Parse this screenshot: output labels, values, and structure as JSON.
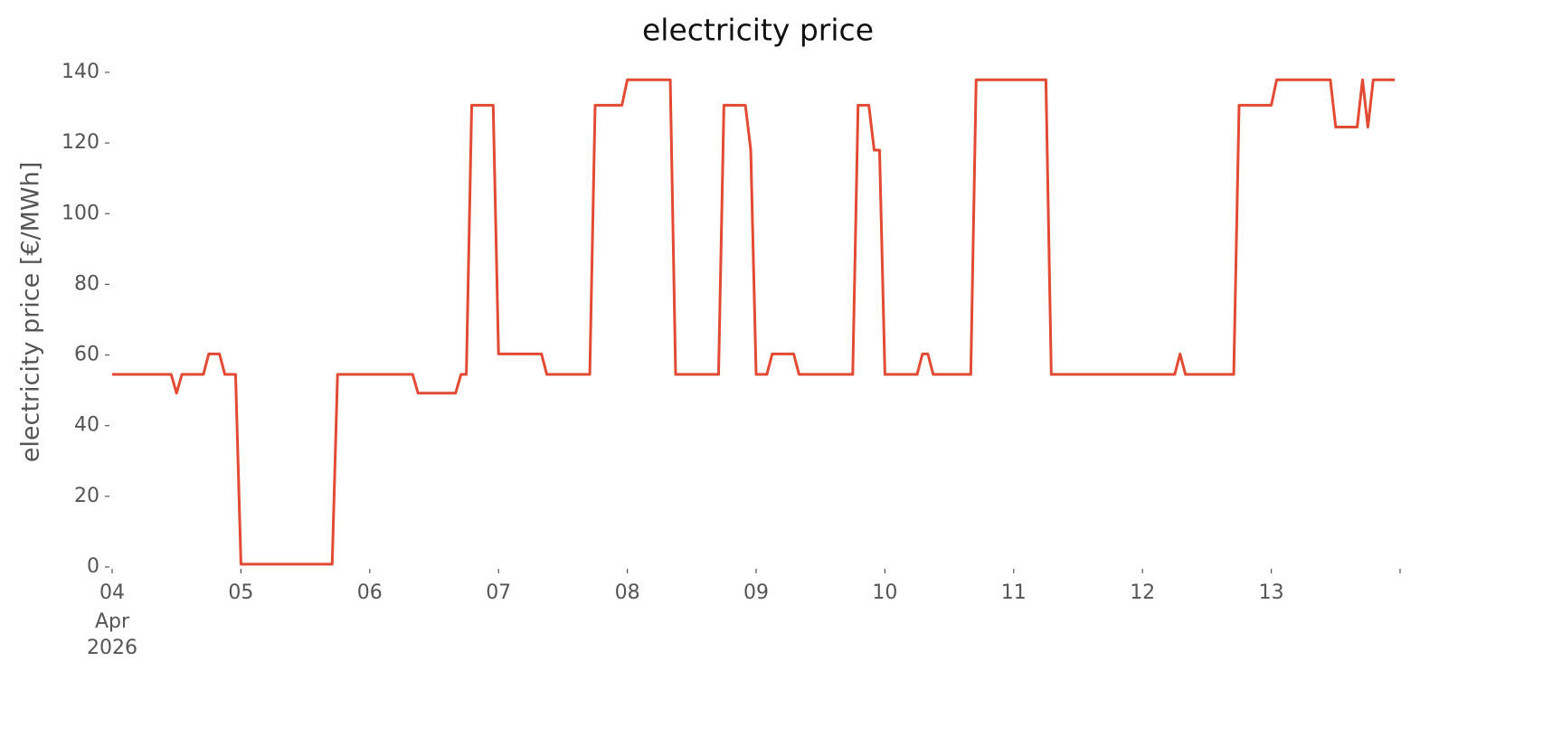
{
  "chart_data": {
    "type": "line",
    "title": "electricity price",
    "ylabel": "electricity price [€/MWh]",
    "x": [
      "2026-04-04T00:00",
      "2026-04-04T11:00",
      "2026-04-04T12:00",
      "2026-04-04T13:00",
      "2026-04-04T17:00",
      "2026-04-04T18:00",
      "2026-04-04T20:00",
      "2026-04-04T21:00",
      "2026-04-04T23:00",
      "2026-04-05T00:00",
      "2026-04-05T17:00",
      "2026-04-05T18:00",
      "2026-04-06T08:00",
      "2026-04-06T09:00",
      "2026-04-06T16:00",
      "2026-04-06T17:00",
      "2026-04-06T18:00",
      "2026-04-06T19:00",
      "2026-04-06T23:00",
      "2026-04-07T00:00",
      "2026-04-07T08:00",
      "2026-04-07T09:00",
      "2026-04-07T17:00",
      "2026-04-07T18:00",
      "2026-04-07T23:00",
      "2026-04-08T00:00",
      "2026-04-08T08:00",
      "2026-04-08T09:00",
      "2026-04-08T17:00",
      "2026-04-08T18:00",
      "2026-04-08T22:00",
      "2026-04-08T23:00",
      "2026-04-09T00:00",
      "2026-04-09T02:00",
      "2026-04-09T03:00",
      "2026-04-09T07:00",
      "2026-04-09T08:00",
      "2026-04-09T18:00",
      "2026-04-09T19:00",
      "2026-04-09T21:00",
      "2026-04-09T22:00",
      "2026-04-09T23:00",
      "2026-04-10T00:00",
      "2026-04-10T06:00",
      "2026-04-10T07:00",
      "2026-04-10T08:00",
      "2026-04-10T09:00",
      "2026-04-10T16:00",
      "2026-04-10T17:00",
      "2026-04-11T06:00",
      "2026-04-11T07:00",
      "2026-04-12T06:00",
      "2026-04-12T07:00",
      "2026-04-12T08:00",
      "2026-04-12T17:00",
      "2026-04-12T18:00",
      "2026-04-13T00:00",
      "2026-04-13T01:00",
      "2026-04-13T11:00",
      "2026-04-13T12:00",
      "2026-04-13T16:00",
      "2026-04-13T17:00",
      "2026-04-13T18:00",
      "2026-04-13T19:00",
      "2026-04-13T23:00"
    ],
    "series": [
      {
        "name": "electricity price",
        "color": "#e24a33",
        "values": [
          54.5,
          54.5,
          49.2,
          54.5,
          54.5,
          60.3,
          60.3,
          54.5,
          54.5,
          0.8,
          0.8,
          54.5,
          54.5,
          49.2,
          49.2,
          54.5,
          54.5,
          130.7,
          130.7,
          60.3,
          60.3,
          54.5,
          54.5,
          130.7,
          130.7,
          137.9,
          137.9,
          54.5,
          54.5,
          130.7,
          130.7,
          118,
          54.5,
          54.5,
          60.3,
          60.3,
          54.5,
          54.5,
          130.7,
          130.7,
          118,
          118,
          54.5,
          54.5,
          60.3,
          60.3,
          54.5,
          54.5,
          137.9,
          137.9,
          54.5,
          54.5,
          60.3,
          54.5,
          54.5,
          130.7,
          130.7,
          137.9,
          137.9,
          124.5,
          124.5,
          137.9,
          124.5,
          137.9,
          137.9
        ]
      }
    ],
    "xlim": [
      "2026-04-04T00:00",
      "2026-04-14T00:00"
    ],
    "xticks": [
      {
        "value": "2026-04-04",
        "label": "04"
      },
      {
        "value": "2026-04-05",
        "label": "05"
      },
      {
        "value": "2026-04-06",
        "label": "06"
      },
      {
        "value": "2026-04-07",
        "label": "07"
      },
      {
        "value": "2026-04-08",
        "label": "08"
      },
      {
        "value": "2026-04-09",
        "label": "09"
      },
      {
        "value": "2026-04-10",
        "label": "10"
      },
      {
        "value": "2026-04-11",
        "label": "11"
      },
      {
        "value": "2026-04-12",
        "label": "12"
      },
      {
        "value": "2026-04-13",
        "label": "13"
      },
      {
        "value": "2026-04-14",
        "label": null
      }
    ],
    "x_tick_sublabels": [
      "Apr",
      "2026"
    ],
    "ylim": [
      0,
      140
    ],
    "yticks": [
      0,
      20,
      40,
      60,
      80,
      100,
      120,
      140
    ],
    "grid": false
  }
}
